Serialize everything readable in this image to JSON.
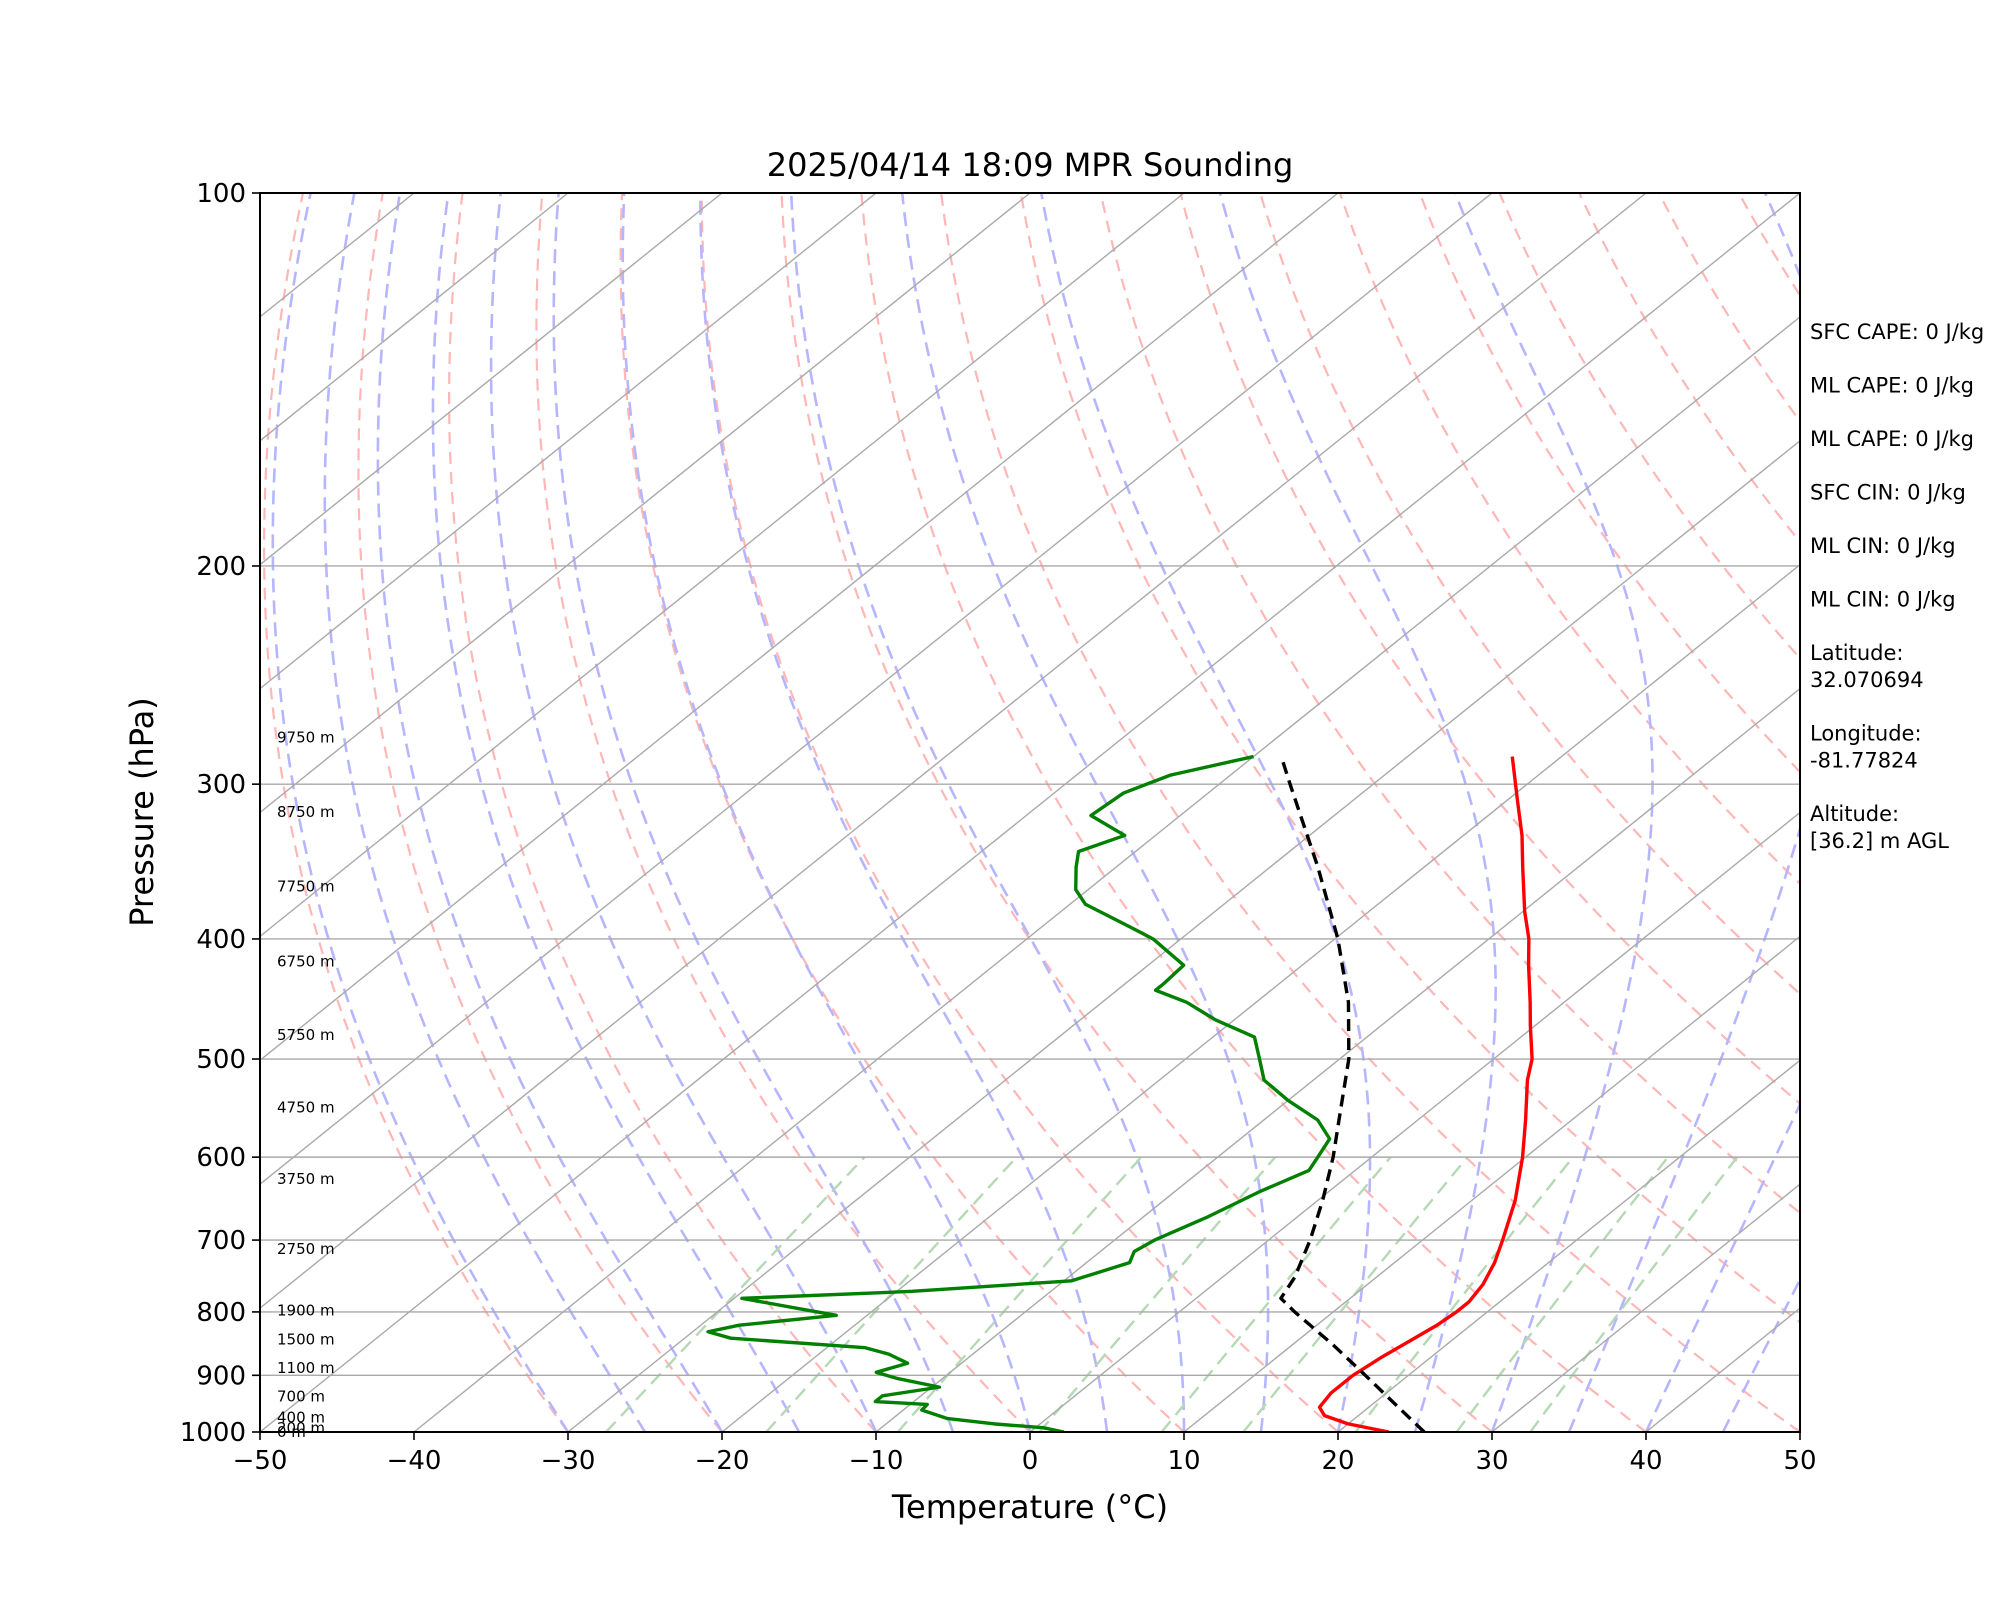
{
  "chart_data": {
    "type": "line",
    "title": "2025/04/14 18:09 MPR Sounding",
    "xlabel": "Temperature (°C)",
    "ylabel": "Pressure (hPa)",
    "xlim": [
      -50,
      50
    ],
    "ylim": [
      1000,
      100
    ],
    "y_scale": "log",
    "skew": true,
    "x_ticks": [
      "−50",
      "−40",
      "−30",
      "−20",
      "−10",
      "0",
      "10",
      "20",
      "30",
      "40",
      "50"
    ],
    "x_tick_values": [
      -50,
      -40,
      -30,
      -20,
      -10,
      0,
      10,
      20,
      30,
      40,
      50
    ],
    "y_ticks": [
      "1000",
      "900",
      "800",
      "700",
      "600",
      "500",
      "400",
      "300",
      "200",
      "100"
    ],
    "y_tick_values": [
      1000,
      900,
      800,
      700,
      600,
      500,
      400,
      300,
      200,
      100
    ],
    "series": [
      {
        "role": "temperature",
        "color": "#ff0000",
        "points": [
          {
            "p": 1000,
            "t": 23.3
          },
          {
            "p": 985,
            "t": 20.0
          },
          {
            "p": 970,
            "t": 17.8
          },
          {
            "p": 955,
            "t": 16.8
          },
          {
            "p": 930,
            "t": 16.4
          },
          {
            "p": 900,
            "t": 16.4
          },
          {
            "p": 870,
            "t": 16.8
          },
          {
            "p": 845,
            "t": 17.3
          },
          {
            "p": 820,
            "t": 17.8
          },
          {
            "p": 800,
            "t": 18.0
          },
          {
            "p": 785,
            "t": 18.0
          },
          {
            "p": 760,
            "t": 17.5
          },
          {
            "p": 730,
            "t": 16.5
          },
          {
            "p": 700,
            "t": 15.2
          },
          {
            "p": 650,
            "t": 12.8
          },
          {
            "p": 600,
            "t": 9.8
          },
          {
            "p": 560,
            "t": 7.0
          },
          {
            "p": 520,
            "t": 3.9
          },
          {
            "p": 500,
            "t": 2.5
          },
          {
            "p": 470,
            "t": -0.3
          },
          {
            "p": 450,
            "t": -2.2
          },
          {
            "p": 420,
            "t": -5.3
          },
          {
            "p": 400,
            "t": -7.4
          },
          {
            "p": 380,
            "t": -9.9
          },
          {
            "p": 350,
            "t": -13.6
          },
          {
            "p": 330,
            "t": -16.2
          },
          {
            "p": 310,
            "t": -19.2
          },
          {
            "p": 285,
            "t": -23.2
          }
        ]
      },
      {
        "role": "dewpoint",
        "color": "#008000",
        "points": [
          {
            "p": 1000,
            "t": 2.2
          },
          {
            "p": 992,
            "t": 0.5
          },
          {
            "p": 985,
            "t": -3.0
          },
          {
            "p": 975,
            "t": -6.5
          },
          {
            "p": 960,
            "t": -8.8
          },
          {
            "p": 950,
            "t": -8.9
          },
          {
            "p": 945,
            "t": -12.5
          },
          {
            "p": 935,
            "t": -12.5
          },
          {
            "p": 920,
            "t": -9.5
          },
          {
            "p": 905,
            "t": -13.0
          },
          {
            "p": 895,
            "t": -14.8
          },
          {
            "p": 880,
            "t": -13.5
          },
          {
            "p": 865,
            "t": -15.5
          },
          {
            "p": 855,
            "t": -17.5
          },
          {
            "p": 840,
            "t": -27.0
          },
          {
            "p": 830,
            "t": -29.0
          },
          {
            "p": 820,
            "t": -27.5
          },
          {
            "p": 805,
            "t": -22.0
          },
          {
            "p": 795,
            "t": -25.0
          },
          {
            "p": 780,
            "t": -29.5
          },
          {
            "p": 770,
            "t": -19.0
          },
          {
            "p": 755,
            "t": -9.5
          },
          {
            "p": 730,
            "t": -7.2
          },
          {
            "p": 715,
            "t": -7.8
          },
          {
            "p": 700,
            "t": -7.4
          },
          {
            "p": 670,
            "t": -5.8
          },
          {
            "p": 640,
            "t": -4.5
          },
          {
            "p": 615,
            "t": -3.0
          },
          {
            "p": 600,
            "t": -3.5
          },
          {
            "p": 580,
            "t": -4.2
          },
          {
            "p": 560,
            "t": -6.5
          },
          {
            "p": 540,
            "t": -10.0
          },
          {
            "p": 520,
            "t": -13.2
          },
          {
            "p": 500,
            "t": -15.2
          },
          {
            "p": 480,
            "t": -17.3
          },
          {
            "p": 465,
            "t": -21.2
          },
          {
            "p": 450,
            "t": -24.5
          },
          {
            "p": 440,
            "t": -27.5
          },
          {
            "p": 435,
            "t": -27.5
          },
          {
            "p": 420,
            "t": -27.7
          },
          {
            "p": 400,
            "t": -31.8
          },
          {
            "p": 390,
            "t": -34.6
          },
          {
            "p": 375,
            "t": -39.0
          },
          {
            "p": 365,
            "t": -40.8
          },
          {
            "p": 350,
            "t": -42.6
          },
          {
            "p": 340,
            "t": -43.7
          },
          {
            "p": 330,
            "t": -42.0
          },
          {
            "p": 318,
            "t": -45.8
          },
          {
            "p": 305,
            "t": -45.5
          },
          {
            "p": 295,
            "t": -43.9
          },
          {
            "p": 285,
            "t": -40.0
          }
        ]
      },
      {
        "role": "parcel",
        "color": "#000000",
        "style": "dashed",
        "points": [
          {
            "p": 1000,
            "t": 25.6
          },
          {
            "p": 950,
            "t": 21.5
          },
          {
            "p": 900,
            "t": 17.2
          },
          {
            "p": 850,
            "t": 12.6
          },
          {
            "p": 800,
            "t": 7.5
          },
          {
            "p": 780,
            "t": 5.5
          },
          {
            "p": 750,
            "t": 4.7
          },
          {
            "p": 700,
            "t": 2.7
          },
          {
            "p": 650,
            "t": 0.3
          },
          {
            "p": 600,
            "t": -2.5
          },
          {
            "p": 550,
            "t": -5.8
          },
          {
            "p": 500,
            "t": -9.4
          },
          {
            "p": 450,
            "t": -14.0
          },
          {
            "p": 400,
            "t": -19.8
          },
          {
            "p": 350,
            "t": -26.9
          },
          {
            "p": 300,
            "t": -35.4
          },
          {
            "p": 285,
            "t": -38.2
          }
        ]
      }
    ],
    "background_lines": {
      "isotherm_color": "#a9a9a9",
      "dry_adiabat_color": "#ffb6b6",
      "moist_adiabat_color": "#b6b6ff",
      "mixing_ratio_color": "#b4d9b4"
    },
    "height_labels": [
      {
        "label": "9750 m",
        "p": 275
      },
      {
        "label": "8750 m",
        "p": 316
      },
      {
        "label": "7750 m",
        "p": 363
      },
      {
        "label": "6750 m",
        "p": 417
      },
      {
        "label": "5750 m",
        "p": 478
      },
      {
        "label": "4750 m",
        "p": 547
      },
      {
        "label": "3750 m",
        "p": 625
      },
      {
        "label": "2750 m",
        "p": 712
      },
      {
        "label": "1900 m",
        "p": 798
      },
      {
        "label": "1500 m",
        "p": 842
      },
      {
        "label": "1100 m",
        "p": 888
      },
      {
        "label": "700 m",
        "p": 936
      },
      {
        "label": "400 m",
        "p": 973
      },
      {
        "label": "200 m",
        "p": 993
      },
      {
        "label": "0 m",
        "p": 1000
      }
    ]
  },
  "parameters": [
    {
      "text": "SFC CAPE: 0 J/kg"
    },
    {
      "text": "ML CAPE: 0 J/kg"
    },
    {
      "text": "ML CAPE: 0 J/kg"
    },
    {
      "text": "SFC CIN: 0 J/kg"
    },
    {
      "text": "ML CIN: 0 J/kg"
    },
    {
      "text": "ML CIN: 0 J/kg"
    },
    {
      "text": "Latitude:",
      "text2": "32.070694"
    },
    {
      "text": "Longitude:",
      "text2": "-81.77824"
    },
    {
      "text": "Altitude:",
      "text2": "[36.2] m AGL"
    }
  ]
}
